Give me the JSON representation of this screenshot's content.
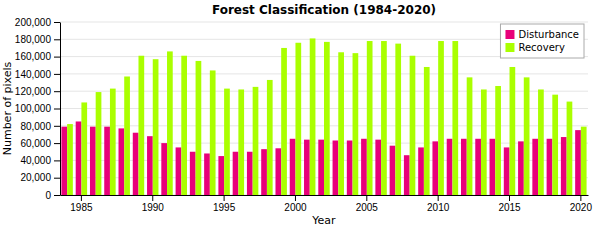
{
  "chart_data": {
    "type": "bar",
    "title": "Forest Classification (1984-2020)",
    "xlabel": "Year",
    "ylabel": "Number of pixels",
    "categories": [
      null,
      "1985",
      null,
      null,
      null,
      null,
      "1990",
      null,
      null,
      null,
      null,
      "1995",
      null,
      null,
      null,
      null,
      "2000",
      null,
      null,
      null,
      null,
      "2005",
      null,
      null,
      null,
      null,
      "2010",
      null,
      null,
      null,
      null,
      "2015",
      null,
      null,
      null,
      null,
      "2020"
    ],
    "series": [
      {
        "name": "Disturbance",
        "color": "#E8007A",
        "values": [
          79000,
          85000,
          79000,
          79000,
          77000,
          72000,
          68000,
          60000,
          55000,
          50000,
          48000,
          45000,
          50000,
          50000,
          53000,
          54000,
          65000,
          64000,
          64000,
          63000,
          63000,
          65000,
          64000,
          57000,
          46000,
          55000,
          62000,
          65000,
          65000,
          65000,
          65000,
          55000,
          62000,
          65000,
          65000,
          67000,
          75000
        ]
      },
      {
        "name": "Recovery",
        "color": "#AAFF00",
        "values": [
          82000,
          107000,
          119000,
          123000,
          137000,
          161000,
          157000,
          166000,
          161000,
          155000,
          144000,
          123000,
          122000,
          125000,
          133000,
          170000,
          176000,
          181000,
          177000,
          165000,
          164000,
          178000,
          178000,
          175000,
          161000,
          148000,
          178000,
          178000,
          136000,
          122000,
          126000,
          148000,
          136000,
          122000,
          116000,
          108000,
          79000
        ]
      }
    ],
    "ylim": [
      0,
      200000
    ],
    "yticks": [
      0,
      {
        "value": 20000,
        "label": "20,000"
      },
      {
        "value": 40000,
        "label": "40,000"
      },
      {
        "value": 60000,
        "label": "60,000"
      },
      {
        "value": 80000,
        "label": "80,000"
      },
      {
        "value": 100000,
        "label": "100,000"
      },
      {
        "value": 120000,
        "label": "120,000"
      },
      {
        "value": 140000,
        "label": "140,000"
      },
      {
        "value": 160000,
        "label": "160,000"
      },
      {
        "value": 180000,
        "label": "180,000"
      },
      {
        "value": 200000,
        "label": "200,000"
      }
    ],
    "grid": true,
    "legend": "upper right"
  }
}
